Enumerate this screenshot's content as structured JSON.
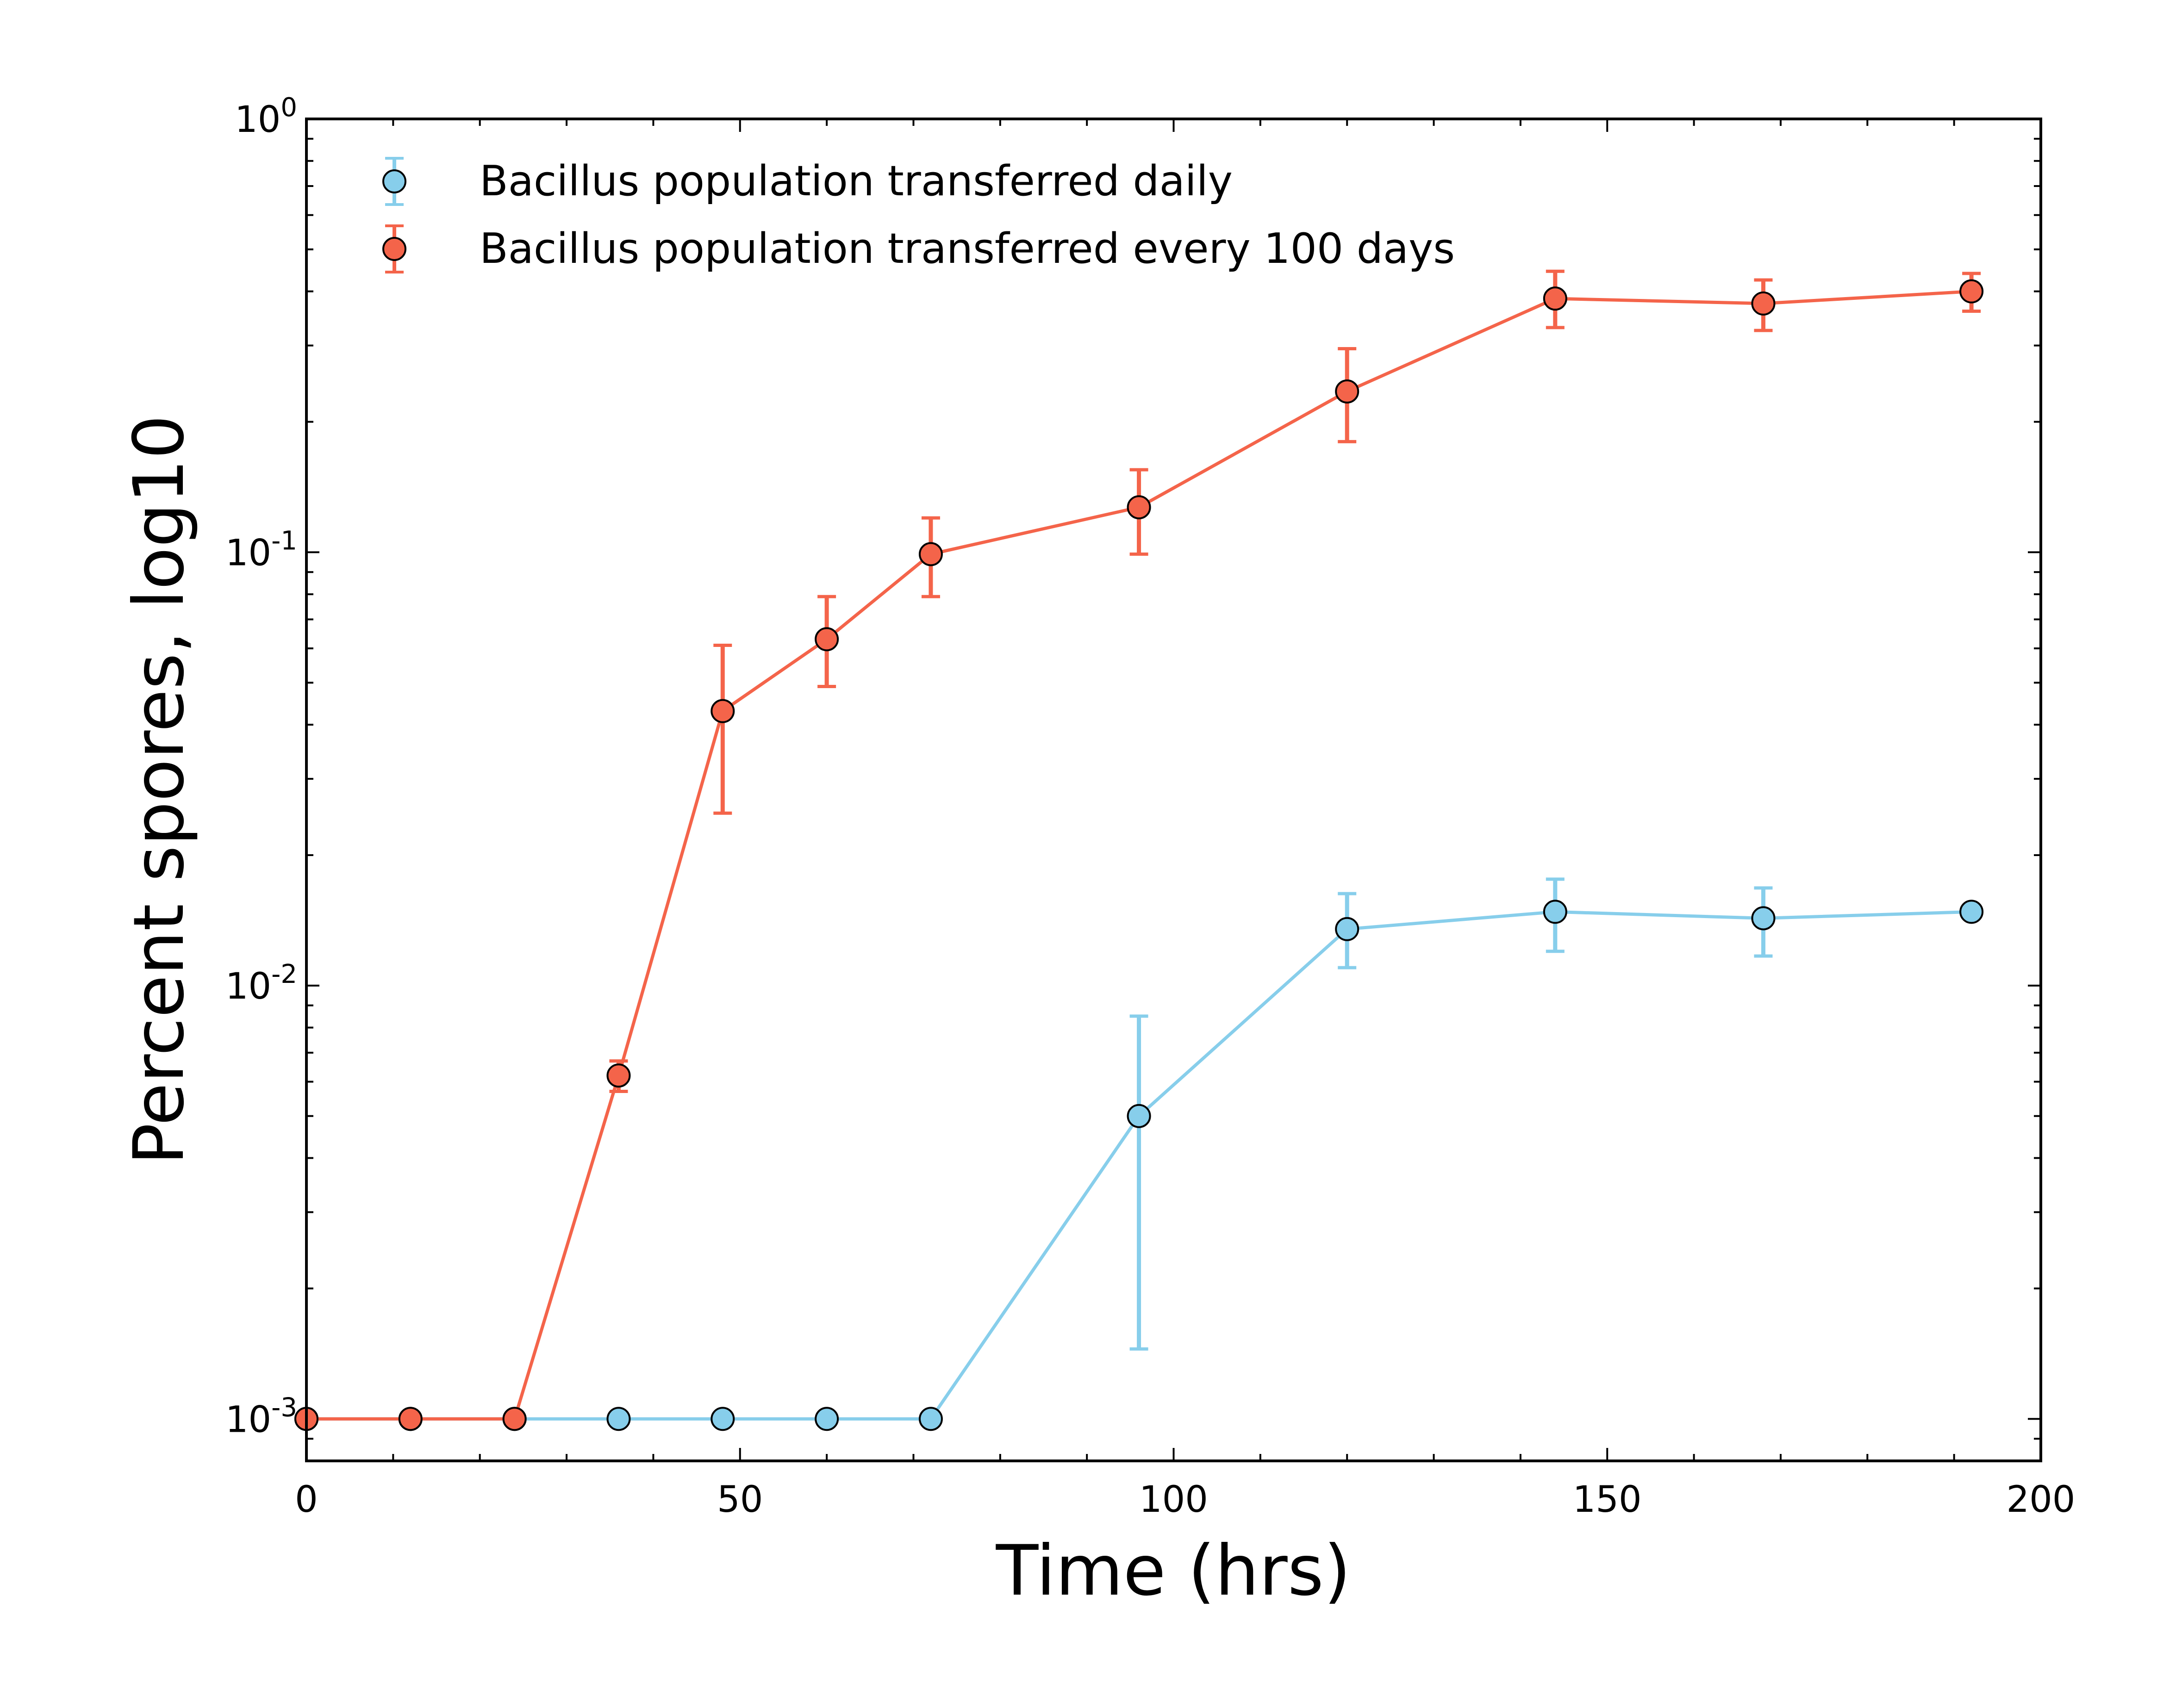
{
  "chart_data": {
    "type": "line",
    "title": "",
    "xlabel": "Time (hrs)",
    "ylabel": "Percent spores, log10",
    "x_scale": "linear",
    "y_scale": "log",
    "xlim": [
      0,
      200
    ],
    "ylim": [
      0.0008,
      1
    ],
    "x_ticks": [
      0,
      50,
      100,
      150,
      200
    ],
    "x_tick_labels": [
      "0",
      "50",
      "100",
      "150",
      "200"
    ],
    "y_ticks": [
      {
        "value": 0.001,
        "base": "10",
        "exp": "-3"
      },
      {
        "value": 0.01,
        "base": "10",
        "exp": "-2"
      },
      {
        "value": 0.1,
        "base": "10",
        "exp": "-1"
      },
      {
        "value": 1,
        "base": "10",
        "exp": "0"
      }
    ],
    "grid": false,
    "legend_position": "top-left",
    "series": [
      {
        "name": "Bacillus population transferred daily",
        "color": "#87ceeb",
        "x": [
          0,
          12,
          24,
          36,
          48,
          60,
          72,
          96,
          120,
          144,
          168,
          192
        ],
        "y": [
          0.001,
          0.001,
          0.001,
          0.001,
          0.001,
          0.001,
          0.001,
          0.005,
          0.0135,
          0.0148,
          0.0143,
          0.0148
        ],
        "y_low": [
          null,
          null,
          null,
          null,
          null,
          null,
          null,
          0.00145,
          0.011,
          0.012,
          0.0117,
          null
        ],
        "y_high": [
          null,
          null,
          null,
          null,
          null,
          null,
          null,
          0.0085,
          0.0163,
          0.0176,
          0.0168,
          null
        ]
      },
      {
        "name": "Bacillus population transferred every 100 days",
        "color": "#f4644a",
        "x": [
          0,
          12,
          24,
          36,
          48,
          60,
          72,
          96,
          120,
          144,
          168,
          192
        ],
        "y": [
          0.001,
          0.001,
          0.001,
          0.0062,
          0.043,
          0.063,
          0.099,
          0.127,
          0.235,
          0.385,
          0.375,
          0.4
        ],
        "y_low": [
          null,
          null,
          null,
          0.0057,
          0.025,
          0.049,
          0.079,
          0.099,
          0.18,
          0.33,
          0.325,
          0.36
        ],
        "y_high": [
          null,
          null,
          null,
          0.0067,
          0.061,
          0.079,
          0.12,
          0.155,
          0.295,
          0.445,
          0.425,
          0.44
        ]
      }
    ]
  }
}
